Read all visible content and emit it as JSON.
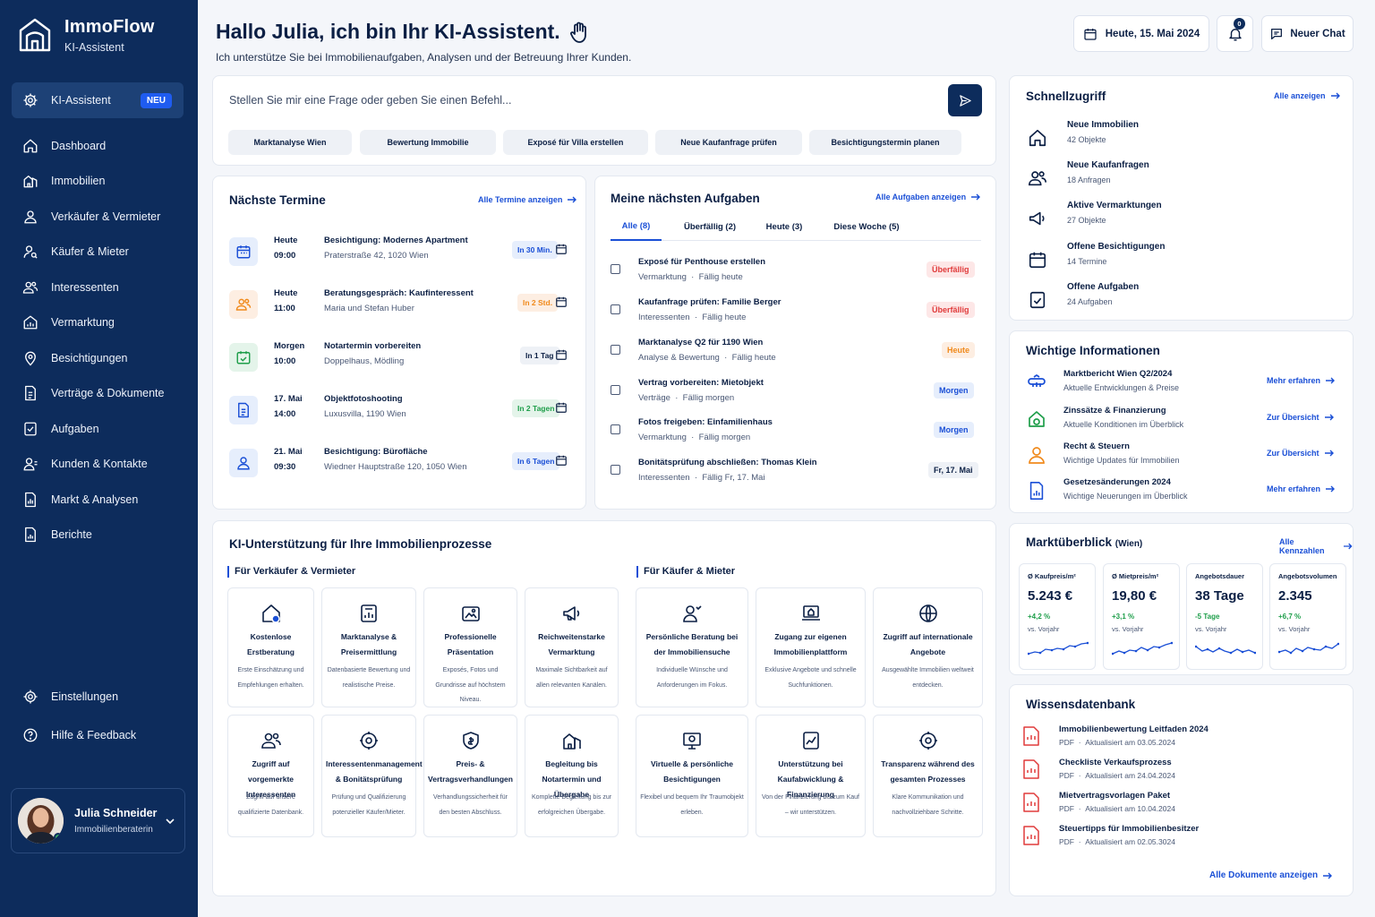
{
  "app": {
    "name": "ImmoFlow",
    "subtitle": "KI-Assistent"
  },
  "sidebar": {
    "items": [
      {
        "label": "KI-Assistent",
        "icon": "gear-icon",
        "badge": "NEU",
        "active": true
      },
      {
        "label": "Dashboard",
        "icon": "home-icon"
      },
      {
        "label": "Immobilien",
        "icon": "building-icon"
      },
      {
        "label": "Verkäufer & Vermieter",
        "icon": "user-icon"
      },
      {
        "label": "Käufer & Mieter",
        "icon": "user-search-icon"
      },
      {
        "label": "Interessenten",
        "icon": "users-icon"
      },
      {
        "label": "Vermarktung",
        "icon": "house-chart-icon"
      },
      {
        "label": "Besichtigungen",
        "icon": "location-pin-icon"
      },
      {
        "label": "Verträge & Dokumente",
        "icon": "document-icon"
      },
      {
        "label": "Aufgaben",
        "icon": "checklist-icon"
      },
      {
        "label": "Kunden & Kontakte",
        "icon": "contacts-icon"
      },
      {
        "label": "Markt & Analysen",
        "icon": "analytics-icon"
      },
      {
        "label": "Berichte",
        "icon": "report-icon"
      }
    ],
    "bottom": [
      {
        "label": "Einstellungen",
        "icon": "gear-icon"
      },
      {
        "label": "Hilfe & Feedback",
        "icon": "help-icon"
      }
    ],
    "user": {
      "name": "Julia Schneider",
      "role": "Immobilienberaterin"
    }
  },
  "header": {
    "title": "Hallo Julia, ich bin Ihr KI-Assistent.",
    "subtitle": "Ich unterstütze Sie bei Immobilienaufgaben, Analysen und der Betreuung Ihrer Kunden.",
    "date": "Heute, 15. Mai 2024",
    "notifications": "0",
    "new_chat": "Neuer Chat"
  },
  "chat": {
    "placeholder": "Stellen Sie mir eine Frage oder geben Sie einen Befehl...",
    "suggestions": [
      "Marktanalyse Wien",
      "Bewertung Immobilie",
      "Exposé für Villa erstellen",
      "Neue Kaufanfrage prüfen",
      "Besichtigungstermin planen"
    ]
  },
  "appointments": {
    "title": "Nächste Termine",
    "link": "Alle Termine anzeigen",
    "items": [
      {
        "day": "Heute",
        "time": "09:00",
        "title": "Besichtigung: Modernes Apartment",
        "sub": "Praterstraße 42, 1020 Wien",
        "badge": "In 30 Min.",
        "icon": "calendar-icon"
      },
      {
        "day": "Heute",
        "time": "11:00",
        "title": "Beratungsgespräch: Kaufinteressent",
        "sub": "Maria und Stefan Huber",
        "badge": "In 2 Std.",
        "icon": "users-icon"
      },
      {
        "day": "Morgen",
        "time": "10:00",
        "title": "Notartermin vorbereiten",
        "sub": "Doppelhaus, Mödling",
        "badge": "In 1 Tag",
        "icon": "calendar-check-icon"
      },
      {
        "day": "17. Mai",
        "time": "14:00",
        "title": "Objektfotoshooting",
        "sub": "Luxusvilla, 1190 Wien",
        "badge": "In 2 Tagen",
        "icon": "document-icon"
      },
      {
        "day": "21. Mai",
        "time": "09:30",
        "title": "Besichtigung: Bürofläche",
        "sub": "Wiedner Hauptstraße 120, 1050 Wien",
        "badge": "In 6 Tagen",
        "icon": "user-icon"
      }
    ]
  },
  "tasks": {
    "title": "Meine nächsten Aufgaben",
    "link": "Alle Aufgaben anzeigen",
    "tabs": [
      "Alle (8)",
      "Überfällig (2)",
      "Heute (3)",
      "Diese Woche (5)"
    ],
    "items": [
      {
        "title": "Exposé für Penthouse erstellen",
        "cat": "Vermarktung",
        "due": "Fällig heute",
        "badge": "Überfällig"
      },
      {
        "title": "Kaufanfrage prüfen: Familie Berger",
        "cat": "Interessenten",
        "due": "Fällig heute",
        "badge": "Überfällig"
      },
      {
        "title": "Marktanalyse Q2 für 1190 Wien",
        "cat": "Analyse & Bewertung",
        "due": "Fällig heute",
        "badge": "Heute"
      },
      {
        "title": "Vertrag vorbereiten: Mietobjekt",
        "cat": "Verträge",
        "due": "Fällig morgen",
        "badge": "Morgen"
      },
      {
        "title": "Fotos freigeben: Einfamilienhaus",
        "cat": "Vermarktung",
        "due": "Fällig morgen",
        "badge": "Morgen"
      },
      {
        "title": "Bonitätsprüfung abschließen: Thomas Klein",
        "cat": "Interessenten",
        "due": "Fällig Fr, 17. Mai",
        "badge": "Fr, 17. Mai"
      }
    ]
  },
  "quick": {
    "title": "Schnellzugriff",
    "link": "Alle anzeigen",
    "items": [
      {
        "title": "Neue Immobilien",
        "sub": "42 Objekte",
        "icon": "home-icon"
      },
      {
        "title": "Neue Kaufanfragen",
        "sub": "18 Anfragen",
        "icon": "users-icon"
      },
      {
        "title": "Aktive Vermarktungen",
        "sub": "27 Objekte",
        "icon": "megaphone-icon"
      },
      {
        "title": "Offene Besichtigungen",
        "sub": "14 Termine",
        "icon": "calendar-icon"
      },
      {
        "title": "Offene Aufgaben",
        "sub": "24 Aufgaben",
        "icon": "checklist-icon"
      }
    ]
  },
  "info": {
    "title": "Wichtige Informationen",
    "items": [
      {
        "title": "Marktbericht Wien Q2/2024",
        "sub": "Aktuelle Entwicklungen & Preise",
        "link": "Mehr erfahren",
        "icon": "chart-icon"
      },
      {
        "title": "Zinssätze & Finanzierung",
        "sub": "Aktuelle Konditionen im Überblick",
        "link": "Zur Übersicht",
        "icon": "money-house-icon"
      },
      {
        "title": "Recht & Steuern",
        "sub": "Wichtige Updates für Immobilien",
        "link": "Zur Übersicht",
        "icon": "user-icon"
      },
      {
        "title": "Gesetzesänderungen 2024",
        "sub": "Wichtige Neuerungen im Überblick",
        "link": "Mehr erfahren",
        "icon": "document-icon"
      }
    ]
  },
  "market": {
    "title": "Marktüberblick",
    "region": "(Wien)",
    "link": "Alle Kennzahlen",
    "items": [
      {
        "label": "Ø Kaufpreis/m²",
        "value": "5.243 €",
        "change": "+4,2 %",
        "vs": "vs. Vorjahr"
      },
      {
        "label": "Ø Mietpreis/m²",
        "value": "19,80 €",
        "change": "+3,1 %",
        "vs": "vs. Vorjahr"
      },
      {
        "label": "Angebotsdauer",
        "value": "38 Tage",
        "change": "-5 Tage",
        "vs": "vs. Vorjahr"
      },
      {
        "label": "Angebotsvolumen",
        "value": "2.345",
        "change": "+6,7 %",
        "vs": "vs. Vorjahr"
      }
    ]
  },
  "docs": {
    "title": "Wissensdatenbank",
    "link": "Alle Dokumente anzeigen",
    "items": [
      {
        "title": "Immobilienbewertung Leitfaden 2024",
        "type": "PDF",
        "updated": "Aktualisiert am 03.05.2024"
      },
      {
        "title": "Checkliste Verkaufsprozess",
        "type": "PDF",
        "updated": "Aktualisiert am 24.04.2024"
      },
      {
        "title": "Mietvertragsvorlagen Paket",
        "type": "PDF",
        "updated": "Aktualisiert am 10.04.2024"
      },
      {
        "title": "Steuertipps für Immobilienbesitzer",
        "type": "PDF",
        "updated": "Aktualisiert am 02.05.3024"
      }
    ]
  },
  "ki": {
    "title": "KI-Unterstützung für Ihre Immobilienprozesse",
    "sellers_head": "Für Verkäufer & Vermieter",
    "buyers_head": "Für Käufer & Mieter",
    "sellers": [
      {
        "title": "Kostenlose Erstberatung",
        "desc": "Erste Einschätzung und Empfehlungen erhalten.",
        "icon": "house-info-icon"
      },
      {
        "title": "Marktanalyse & Preisermittlung",
        "desc": "Datenbasierte Bewertung und realistische Preise.",
        "icon": "analytics-icon"
      },
      {
        "title": "Professionelle Präsentation",
        "desc": "Exposés, Fotos und Grundrisse auf höchstem Niveau.",
        "icon": "image-icon"
      },
      {
        "title": "Reichweitenstarke Vermarktung",
        "desc": "Maximale Sichtbarkeit auf allen relevanten Kanälen.",
        "icon": "megaphone-icon"
      },
      {
        "title": "Zugriff auf vorgemerkte Interessenten",
        "desc": "Zugriff auf unsere qualifizierte Datenbank.",
        "icon": "users-icon"
      },
      {
        "title": "Interessentenmanagement & Bonitätsprüfung",
        "desc": "Prüfung und Qualifizierung potenzieller Käufer/Mieter.",
        "icon": "gear-icon"
      },
      {
        "title": "Preis- & Vertragsverhandlungen",
        "desc": "Verhandlungssicherheit für den besten Abschluss.",
        "icon": "shield-icon"
      },
      {
        "title": "Begleitung bis Notartermin und Übergabe",
        "desc": "Komplette Begleitung bis zur erfolgreichen Übergabe.",
        "icon": "building-icon"
      }
    ],
    "buyers": [
      {
        "title": "Persönliche Beratung bei der Immobiliensuche",
        "desc": "Individuelle Wünsche und Anforderungen im Fokus.",
        "icon": "user-icon"
      },
      {
        "title": "Zugang zur eigenen Immobilienplattform",
        "desc": "Exklusive Angebote und schnelle Suchfunktionen.",
        "icon": "laptop-icon"
      },
      {
        "title": "Zugriff auf internationale Angebote",
        "desc": "Ausgewählte Immobilien weltweit entdecken.",
        "icon": "globe-icon"
      },
      {
        "title": "Virtuelle & persönliche Besichtigungen",
        "desc": "Flexibel und bequem Ihr Traumobjekt erleben.",
        "icon": "monitor-icon"
      },
      {
        "title": "Unterstützung bei Kaufabwicklung & Finanzierung",
        "desc": "Von der Finanzierung bis zum Kauf – wir unterstützen.",
        "icon": "document-chart-icon"
      },
      {
        "title": "Transparenz während des gesamten Prozesses",
        "desc": "Klare Kommunikation und nachvollziehbare Schritte.",
        "icon": "gear-icon"
      }
    ]
  },
  "colors": {
    "sidebar": "#0d2c5c",
    "accent": "#1a4fd6",
    "danger": "#e03b3b",
    "warning": "#f08a1c",
    "success": "#1e9e4a"
  }
}
